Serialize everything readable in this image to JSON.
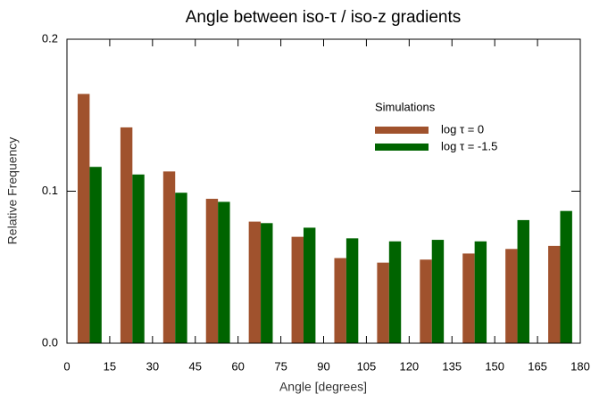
{
  "chart_data": {
    "type": "histogram",
    "title": "Angle between iso-τ / iso-z gradients",
    "xlabel": "Angle   [degrees]",
    "ylabel": "Relative Frequency",
    "bins": [
      0,
      15,
      30,
      45,
      60,
      75,
      90,
      105,
      120,
      135,
      150,
      165,
      180
    ],
    "legend_title": "Simulations",
    "series": [
      {
        "name": "log τ = 0",
        "color": "#a0522d",
        "values": [
          0.164,
          0.142,
          0.113,
          0.095,
          0.08,
          0.07,
          0.056,
          0.053,
          0.055,
          0.059,
          0.062,
          0.064
        ]
      },
      {
        "name": "log τ = -1.5",
        "color": "#006400",
        "values": [
          0.116,
          0.111,
          0.099,
          0.093,
          0.079,
          0.076,
          0.069,
          0.067,
          0.068,
          0.067,
          0.081,
          0.087
        ]
      }
    ],
    "xlim": [
      0,
      180
    ],
    "xticks": [
      0,
      15,
      30,
      45,
      60,
      75,
      90,
      105,
      120,
      135,
      150,
      165,
      180
    ],
    "ylim": [
      0,
      0.2
    ],
    "yticks": [
      {
        "value": 0,
        "label": "0.0"
      },
      0.1,
      0.2
    ]
  }
}
